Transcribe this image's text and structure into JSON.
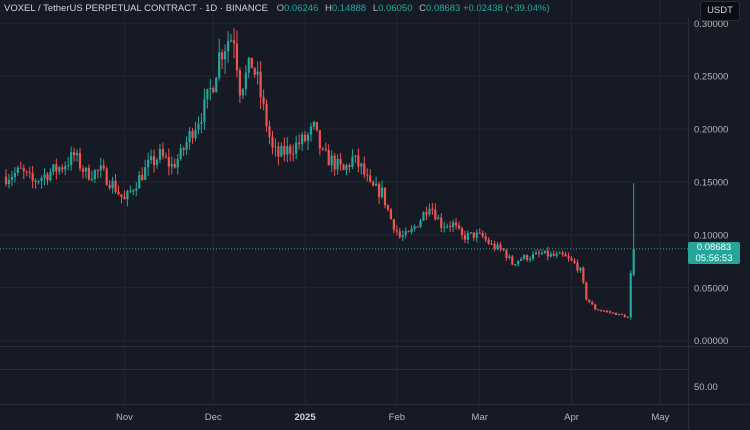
{
  "header": {
    "symbol": "VOXEL / TetherUS PERPETUAL CONTRACT · 1D · BINANCE",
    "o_label": "O",
    "o": "0.06246",
    "h_label": "H",
    "h": "0.14888",
    "l_label": "L",
    "l": "0.06050",
    "c_label": "C",
    "c": "0.08683",
    "change": "+0.02438 (+39.04%)"
  },
  "currency_button": "USDT",
  "last_price": {
    "price": "0.08683",
    "countdown": "05:56:53"
  },
  "colors": {
    "up": "#26a69a",
    "down": "#ef5350",
    "background": "#161a25",
    "grid": "#232633"
  },
  "chart_data": {
    "type": "candlestick",
    "x_ticks": [
      {
        "label": "Nov",
        "date": "2024-11-01",
        "bold": false
      },
      {
        "label": "Dec",
        "date": "2024-12-01",
        "bold": false
      },
      {
        "label": "2025",
        "date": "2025-01-01",
        "bold": true
      },
      {
        "label": "Feb",
        "date": "2025-02-01",
        "bold": false
      },
      {
        "label": "Mar",
        "date": "2025-03-01",
        "bold": false
      },
      {
        "label": "Apr",
        "date": "2025-04-01",
        "bold": false
      },
      {
        "label": "May",
        "date": "2025-05-01",
        "bold": false
      }
    ],
    "x_range": [
      "2024-09-22",
      "2025-05-10"
    ],
    "y_ticks": [
      "0.30000",
      "0.25000",
      "0.20000",
      "0.15000",
      "0.10000",
      "0.05000",
      "0.00000"
    ],
    "ylim": [
      -0.005,
      0.305
    ],
    "last_price_line": 0.08683,
    "volume_axis_tick": "50.00",
    "close_path": [
      [
        "2024-09-22",
        0.155
      ],
      [
        "2024-09-27",
        0.16
      ],
      [
        "2024-10-01",
        0.15
      ],
      [
        "2024-10-06",
        0.158
      ],
      [
        "2024-10-11",
        0.165
      ],
      [
        "2024-10-15",
        0.175
      ],
      [
        "2024-10-19",
        0.158
      ],
      [
        "2024-10-24",
        0.16
      ],
      [
        "2024-10-28",
        0.148
      ],
      [
        "2024-11-01",
        0.132
      ],
      [
        "2024-11-05",
        0.15
      ],
      [
        "2024-11-09",
        0.165
      ],
      [
        "2024-11-13",
        0.175
      ],
      [
        "2024-11-17",
        0.165
      ],
      [
        "2024-11-20",
        0.175
      ],
      [
        "2024-11-24",
        0.2
      ],
      [
        "2024-11-28",
        0.22
      ],
      [
        "2024-12-01",
        0.245
      ],
      [
        "2024-12-03",
        0.27
      ],
      [
        "2024-12-06",
        0.285
      ],
      [
        "2024-12-08",
        0.288
      ],
      [
        "2024-12-10",
        0.24
      ],
      [
        "2024-12-12",
        0.25
      ],
      [
        "2024-12-14",
        0.262
      ],
      [
        "2024-12-16",
        0.245
      ],
      [
        "2024-12-18",
        0.218
      ],
      [
        "2024-12-21",
        0.18
      ],
      [
        "2024-12-23",
        0.175
      ],
      [
        "2024-12-26",
        0.18
      ],
      [
        "2024-12-29",
        0.185
      ],
      [
        "2025-01-01",
        0.19
      ],
      [
        "2025-01-04",
        0.2
      ],
      [
        "2025-01-07",
        0.175
      ],
      [
        "2025-01-10",
        0.17
      ],
      [
        "2025-01-14",
        0.16
      ],
      [
        "2025-01-17",
        0.172
      ],
      [
        "2025-01-20",
        0.163
      ],
      [
        "2025-01-23",
        0.145
      ],
      [
        "2025-01-27",
        0.14
      ],
      [
        "2025-01-30",
        0.115
      ],
      [
        "2025-02-02",
        0.098
      ],
      [
        "2025-02-05",
        0.1
      ],
      [
        "2025-02-09",
        0.115
      ],
      [
        "2025-02-12",
        0.13
      ],
      [
        "2025-02-16",
        0.11
      ],
      [
        "2025-02-20",
        0.11
      ],
      [
        "2025-02-23",
        0.098
      ],
      [
        "2025-02-27",
        0.1
      ],
      [
        "2025-03-02",
        0.098
      ],
      [
        "2025-03-05",
        0.09
      ],
      [
        "2025-03-09",
        0.085
      ],
      [
        "2025-03-12",
        0.073
      ],
      [
        "2025-03-15",
        0.078
      ],
      [
        "2025-03-19",
        0.08
      ],
      [
        "2025-03-22",
        0.082
      ],
      [
        "2025-03-26",
        0.08
      ],
      [
        "2025-03-29",
        0.08
      ],
      [
        "2025-04-02",
        0.073
      ],
      [
        "2025-04-04",
        0.066
      ],
      [
        "2025-04-06",
        0.04
      ],
      [
        "2025-04-09",
        0.03
      ],
      [
        "2025-04-12",
        0.028
      ],
      [
        "2025-04-15",
        0.026
      ],
      [
        "2025-04-18",
        0.024
      ],
      [
        "2025-04-20",
        0.022
      ],
      [
        "2025-04-21",
        0.062
      ],
      [
        "2025-04-22",
        0.08683
      ]
    ],
    "last_candle": {
      "date": "2025-04-22",
      "open": 0.06246,
      "high": 0.14888,
      "low": 0.0605,
      "close": 0.08683
    }
  }
}
